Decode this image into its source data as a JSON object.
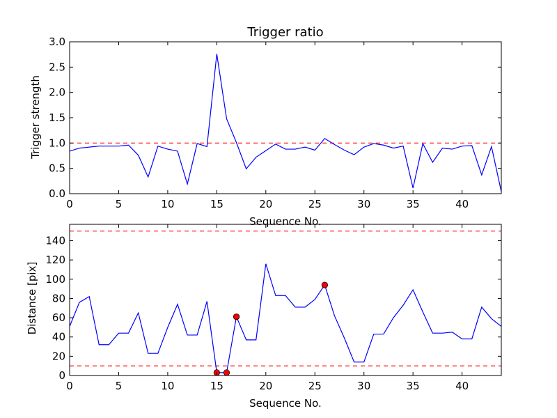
{
  "chart_data": [
    {
      "type": "line",
      "title": "Trigger ratio",
      "xlabel": "Sequence No.",
      "ylabel": "Trigger strength",
      "xlim": [
        0,
        44
      ],
      "ylim": [
        0,
        3.0
      ],
      "xticks": [
        0,
        5,
        10,
        15,
        20,
        25,
        30,
        35,
        40
      ],
      "yticks": [
        0.0,
        0.5,
        1.0,
        1.5,
        2.0,
        2.5,
        3.0
      ],
      "ytick_labels": [
        "0.0",
        "0.5",
        "1.0",
        "1.5",
        "2.0",
        "2.5",
        "3.0"
      ],
      "line_color": "#0000ff",
      "threshold_color": "#ff0000",
      "series": [
        {
          "x": [
            0,
            1,
            2,
            3,
            4,
            5,
            6,
            7,
            8,
            9,
            10,
            11,
            12,
            13,
            14,
            15,
            16,
            17,
            18,
            19,
            20,
            21,
            22,
            23,
            24,
            25,
            26,
            27,
            28,
            29,
            30,
            31,
            32,
            33,
            34,
            35,
            36,
            37,
            38,
            39,
            40,
            41,
            42,
            43,
            44
          ],
          "values": [
            0.84,
            0.9,
            0.92,
            0.94,
            0.94,
            0.94,
            0.96,
            0.76,
            0.33,
            0.94,
            0.88,
            0.84,
            0.19,
            0.99,
            0.93,
            2.76,
            1.48,
            1.01,
            0.49,
            0.72,
            0.85,
            0.98,
            0.88,
            0.88,
            0.92,
            0.86,
            1.09,
            0.97,
            0.86,
            0.77,
            0.92,
            0.99,
            0.96,
            0.9,
            0.94,
            0.11,
            0.99,
            0.62,
            0.9,
            0.88,
            0.94,
            0.95,
            0.37,
            0.93,
            0.04
          ]
        }
      ],
      "thresholds": [
        1.0
      ],
      "grid": false
    },
    {
      "type": "line",
      "xlabel": "Sequence No.",
      "ylabel": "Distance [pix]",
      "xlim": [
        0,
        44
      ],
      "ylim": [
        0,
        157
      ],
      "xticks": [
        0,
        5,
        10,
        15,
        20,
        25,
        30,
        35,
        40
      ],
      "yticks": [
        0,
        20,
        40,
        60,
        80,
        100,
        120,
        140
      ],
      "line_color": "#0000ff",
      "threshold_color": "#ff0000",
      "marker_color": "#ff0000",
      "series": [
        {
          "x": [
            0,
            1,
            2,
            3,
            4,
            5,
            6,
            7,
            8,
            9,
            10,
            11,
            12,
            13,
            14,
            15,
            16,
            17,
            18,
            19,
            20,
            21,
            22,
            23,
            24,
            25,
            26,
            27,
            28,
            29,
            30,
            31,
            32,
            33,
            34,
            35,
            36,
            37,
            38,
            39,
            40,
            41,
            42,
            43,
            44
          ],
          "values": [
            51,
            76,
            82,
            32,
            32,
            44,
            44,
            65,
            23,
            23,
            50,
            74,
            42,
            42,
            77,
            3,
            3,
            61,
            37,
            37,
            116,
            83,
            83,
            71,
            71,
            79,
            94,
            62,
            39,
            14,
            14,
            43,
            43,
            60,
            73,
            89,
            66,
            44,
            44,
            45,
            38,
            38,
            71,
            59,
            51
          ]
        }
      ],
      "markers": {
        "x": [
          15,
          16,
          17,
          26
        ],
        "y": [
          3,
          3,
          61,
          94
        ]
      },
      "thresholds": [
        10,
        150
      ],
      "grid": false
    }
  ]
}
